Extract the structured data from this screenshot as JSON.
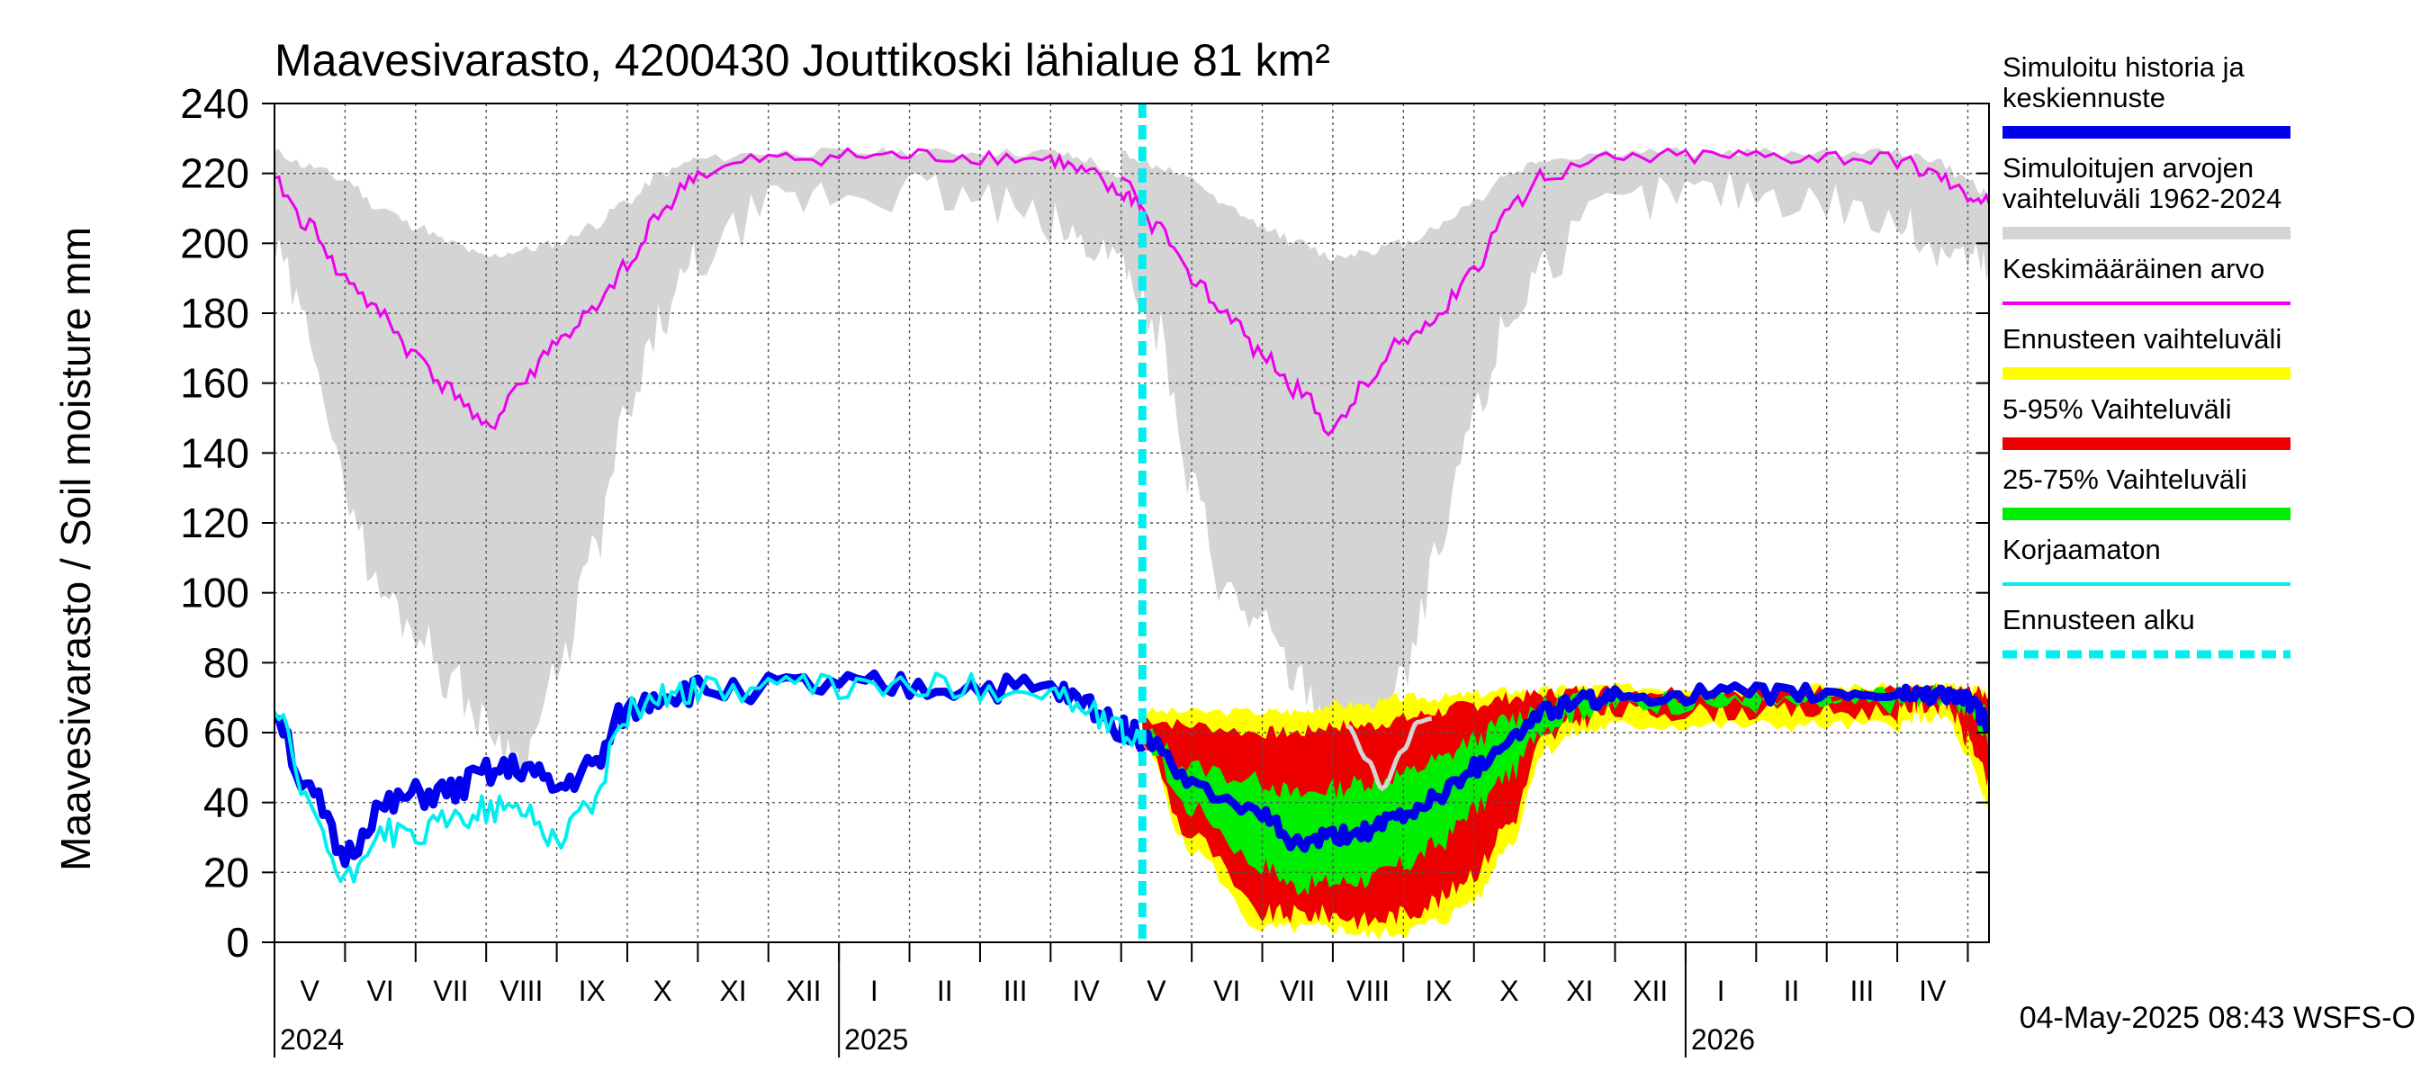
{
  "chart_data": {
    "type": "area",
    "title": "Maavesivarasto, 4200430 Jouttikoski lähialue 81 km²",
    "ylabel": "Maavesivarasto / Soil moisture   mm",
    "ylim": [
      0,
      240
    ],
    "yticks": [
      0,
      20,
      40,
      60,
      80,
      100,
      120,
      140,
      160,
      180,
      200,
      220,
      240
    ],
    "grid": true,
    "legend_position": "right",
    "x_unit": "months since 2024-04-25",
    "xlim": [
      0,
      24.3
    ],
    "forecast_start": 12.3,
    "timestamp": "04-May-2025 08:43 WSFS-O",
    "month_labels": [
      {
        "label": "V",
        "x": 0.5
      },
      {
        "label": "VI",
        "x": 1.5
      },
      {
        "label": "VII",
        "x": 2.5
      },
      {
        "label": "VIII",
        "x": 3.5
      },
      {
        "label": "IX",
        "x": 4.5
      },
      {
        "label": "X",
        "x": 5.5
      },
      {
        "label": "XI",
        "x": 6.5
      },
      {
        "label": "XII",
        "x": 7.5
      },
      {
        "label": "I",
        "x": 8.5
      },
      {
        "label": "II",
        "x": 9.5
      },
      {
        "label": "III",
        "x": 10.5
      },
      {
        "label": "IV",
        "x": 11.5
      },
      {
        "label": "V",
        "x": 12.5
      },
      {
        "label": "VI",
        "x": 13.5
      },
      {
        "label": "VII",
        "x": 14.5
      },
      {
        "label": "VIII",
        "x": 15.5
      },
      {
        "label": "IX",
        "x": 16.5
      },
      {
        "label": "X",
        "x": 17.5
      },
      {
        "label": "XI",
        "x": 18.5
      },
      {
        "label": "XII",
        "x": 19.5
      },
      {
        "label": "I",
        "x": 20.5
      },
      {
        "label": "II",
        "x": 21.5
      },
      {
        "label": "III",
        "x": 22.5
      },
      {
        "label": "IV",
        "x": 23.5
      }
    ],
    "month_boundaries": [
      0,
      1,
      2,
      3,
      4,
      5,
      6,
      7,
      8,
      9,
      10,
      11,
      12,
      13,
      14,
      15,
      16,
      17,
      18,
      19,
      20,
      21,
      22,
      23,
      24
    ],
    "year_labels": [
      {
        "label": "2024",
        "x": 0
      },
      {
        "label": "2025",
        "x": 8
      },
      {
        "label": "2026",
        "x": 20
      }
    ],
    "legend": [
      {
        "label": "Simuloitu historia ja keskiennuste",
        "color": "#0000ee",
        "style": "solid"
      },
      {
        "label": "Simuloitujen arvojen vaihteluväli 1962-2024",
        "color": "#d4d4d4",
        "style": "solid"
      },
      {
        "label": "Keskimääräinen arvo",
        "color": "#ee00ee",
        "style": "solid"
      },
      {
        "label": "Ennusteen vaihteluväli",
        "color": "#ffff00",
        "style": "solid"
      },
      {
        "label": "5-95% Vaihteluväli",
        "color": "#ee0000",
        "style": "solid"
      },
      {
        "label": "25-75% Vaihteluväli",
        "color": "#00ee00",
        "style": "solid"
      },
      {
        "label": "Korjaamaton",
        "color": "#00eeee",
        "style": "solid"
      },
      {
        "label": "Ennusteen alku",
        "color": "#00eeee",
        "style": "dashed"
      }
    ],
    "x": [
      0,
      0.5,
      1,
      1.5,
      2,
      2.5,
      3,
      3.5,
      4,
      4.5,
      5,
      5.5,
      6,
      7,
      8,
      9,
      10,
      11,
      11.5,
      12,
      12.3
    ],
    "series": [
      {
        "name": "Simuloitujen arvojen vaihteluväli max",
        "values": [
          226,
          222,
          218,
          210,
          205,
          200,
          196,
          198,
          200,
          205,
          212,
          220,
          224,
          226,
          226,
          226,
          226,
          226,
          224,
          218,
          214
        ]
      },
      {
        "name": "Simuloitujen arvojen vaihteluväli min",
        "values": [
          196,
          175,
          130,
          100,
          90,
          75,
          62,
          52,
          75,
          110,
          150,
          178,
          195,
          210,
          214,
          215,
          212,
          205,
          200,
          196,
          192
        ]
      },
      {
        "name": "Keskimääräinen arvo",
        "values": [
          217,
          205,
          190,
          180,
          168,
          158,
          147,
          160,
          172,
          180,
          193,
          210,
          220,
          224,
          225,
          225,
          225,
          224,
          220,
          214,
          212
        ]
      },
      {
        "name": "Simuloitu historia ja keskiennuste",
        "values": [
          66,
          42,
          25,
          38,
          42,
          43,
          48,
          50,
          44,
          50,
          66,
          71,
          72,
          73,
          73,
          73,
          73,
          72,
          68,
          62,
          58
        ]
      },
      {
        "name": "Korjaamaton",
        "values": [
          66,
          38,
          17,
          32,
          30,
          35,
          38,
          38,
          30,
          40,
          66,
          71,
          72,
          73,
          73,
          73,
          73,
          72,
          66,
          60,
          58
        ]
      }
    ],
    "forecast": {
      "x": [
        12.3,
        13,
        14,
        14.5,
        15,
        15.5,
        16,
        16.5,
        17,
        17.5,
        18,
        18.5,
        19,
        20,
        21,
        22,
        23,
        23.3,
        23.7,
        24,
        24.3
      ],
      "yellow_upper": [
        66,
        66,
        66,
        66,
        68,
        68,
        70,
        70,
        71,
        72,
        72,
        73,
        73,
        73,
        73,
        73,
        73,
        73,
        73,
        73,
        72
      ],
      "yellow_lower": [
        56,
        26,
        4,
        4,
        4,
        2,
        3,
        6,
        12,
        28,
        55,
        60,
        62,
        62,
        62,
        62,
        62,
        64,
        64,
        52,
        40
      ],
      "red_upper": [
        64,
        62,
        60,
        60,
        62,
        62,
        64,
        66,
        68,
        70,
        71,
        72,
        72,
        72,
        72,
        72,
        72,
        72,
        72,
        72,
        71
      ],
      "red_lower": [
        57,
        30,
        8,
        8,
        8,
        6,
        8,
        12,
        20,
        34,
        58,
        64,
        66,
        66,
        66,
        66,
        66,
        68,
        68,
        58,
        46
      ],
      "green_upper": [
        60,
        50,
        46,
        42,
        44,
        46,
        48,
        52,
        58,
        64,
        68,
        70,
        71,
        71,
        71,
        71,
        71,
        71,
        71,
        70,
        66
      ],
      "green_lower": [
        58,
        38,
        22,
        16,
        17,
        18,
        22,
        28,
        38,
        48,
        62,
        66,
        68,
        68,
        68,
        68,
        68,
        70,
        70,
        66,
        58
      ],
      "median": [
        59,
        45,
        36,
        28,
        30,
        32,
        36,
        42,
        50,
        58,
        66,
        69,
        70,
        71,
        71,
        71,
        71,
        71,
        71,
        69,
        63
      ]
    },
    "light_line": {
      "x": [
        15.2,
        15.5,
        15.7,
        16,
        16.2,
        16.4
      ],
      "values": [
        62,
        52,
        44,
        55,
        63,
        64
      ]
    }
  }
}
